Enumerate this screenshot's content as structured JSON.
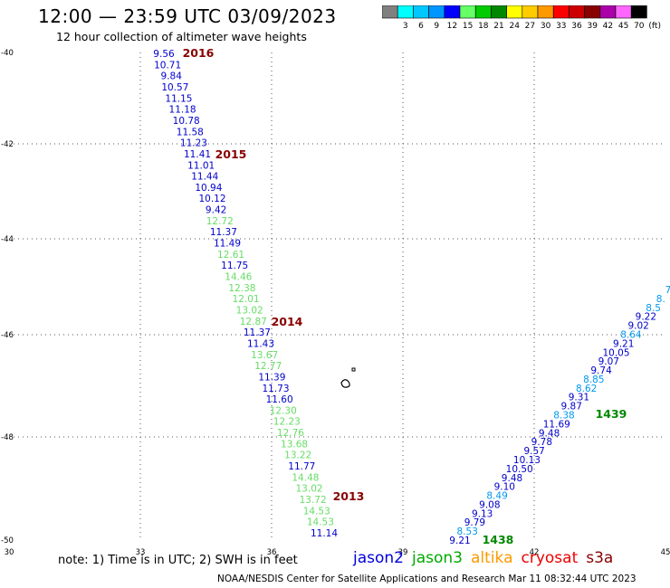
{
  "header": {
    "title": "12:00 — 23:59 UTC 03/09/2023",
    "subtitle": "12 hour collection of altimeter wave heights"
  },
  "color_scale": {
    "unit": "(ft)",
    "levels": [
      {
        "label": "",
        "color": "#808080"
      },
      {
        "label": "3",
        "color": "#00ffff"
      },
      {
        "label": "6",
        "color": "#00c8ff"
      },
      {
        "label": "9",
        "color": "#0096ff"
      },
      {
        "label": "12",
        "color": "#0000ff"
      },
      {
        "label": "15",
        "color": "#66ff66"
      },
      {
        "label": "18",
        "color": "#00cc00"
      },
      {
        "label": "21",
        "color": "#008800"
      },
      {
        "label": "24",
        "color": "#ffff00"
      },
      {
        "label": "27",
        "color": "#ffcc00"
      },
      {
        "label": "30",
        "color": "#ff9900"
      },
      {
        "label": "33",
        "color": "#ff0000"
      },
      {
        "label": "36",
        "color": "#cc0000"
      },
      {
        "label": "39",
        "color": "#880000"
      },
      {
        "label": "42",
        "color": "#aa00aa"
      },
      {
        "label": "45",
        "color": "#ff66ff"
      },
      {
        "label": "70",
        "color": "#000000"
      }
    ]
  },
  "axes": {
    "lon_labels": [
      "30",
      "33",
      "36",
      "39",
      "42",
      "45"
    ],
    "lat_labels": [
      "-40",
      "-42",
      "-44",
      "-46",
      "-48",
      "-50"
    ]
  },
  "tracks": [
    {
      "id": "west",
      "points": [
        {
          "v": "9.56",
          "c": "#0000cc"
        },
        {
          "v": "10.71",
          "c": "#0000cc"
        },
        {
          "v": "9.84",
          "c": "#0000cc"
        },
        {
          "v": "10.57",
          "c": "#0000cc"
        },
        {
          "v": "11.15",
          "c": "#0000cc"
        },
        {
          "v": "11.18",
          "c": "#0000cc"
        },
        {
          "v": "10.78",
          "c": "#0000cc"
        },
        {
          "v": "11.58",
          "c": "#0000cc"
        },
        {
          "v": "11.23",
          "c": "#0000cc"
        },
        {
          "v": "11.41",
          "c": "#0000cc"
        },
        {
          "v": "11.01",
          "c": "#0000cc"
        },
        {
          "v": "11.44",
          "c": "#0000cc"
        },
        {
          "v": "10.94",
          "c": "#0000cc"
        },
        {
          "v": "10.12",
          "c": "#0000cc"
        },
        {
          "v": "9.42",
          "c": "#0000cc"
        },
        {
          "v": "12.72",
          "c": "#66dd66"
        },
        {
          "v": "11.37",
          "c": "#0000cc"
        },
        {
          "v": "11.49",
          "c": "#0000cc"
        },
        {
          "v": "12.61",
          "c": "#66dd66"
        },
        {
          "v": "11.75",
          "c": "#0000cc"
        },
        {
          "v": "14.46",
          "c": "#66dd66"
        },
        {
          "v": "12.38",
          "c": "#66dd66"
        },
        {
          "v": "12.01",
          "c": "#66dd66"
        },
        {
          "v": "13.02",
          "c": "#66dd66"
        },
        {
          "v": "12.87",
          "c": "#66dd66"
        },
        {
          "v": "11.37",
          "c": "#0000cc"
        },
        {
          "v": "11.43",
          "c": "#0000cc"
        },
        {
          "v": "13.67",
          "c": "#66dd66"
        },
        {
          "v": "12.77",
          "c": "#66dd66"
        },
        {
          "v": "11.39",
          "c": "#0000cc"
        },
        {
          "v": "11.73",
          "c": "#0000cc"
        },
        {
          "v": "11.60",
          "c": "#0000cc"
        },
        {
          "v": "12.30",
          "c": "#66dd66"
        },
        {
          "v": "12.23",
          "c": "#66dd66"
        },
        {
          "v": "12.76",
          "c": "#66dd66"
        },
        {
          "v": "13.68",
          "c": "#66dd66"
        },
        {
          "v": "13.22",
          "c": "#66dd66"
        },
        {
          "v": "11.77",
          "c": "#0000cc"
        },
        {
          "v": "14.48",
          "c": "#66dd66"
        },
        {
          "v": "13.02",
          "c": "#66dd66"
        },
        {
          "v": "13.72",
          "c": "#66dd66"
        },
        {
          "v": "14.53",
          "c": "#66dd66"
        },
        {
          "v": "14.53",
          "c": "#66dd66"
        },
        {
          "v": "11.14",
          "c": "#0000cc"
        }
      ],
      "pass_labels": [
        {
          "text": "2016",
          "color": "#880000"
        },
        {
          "text": "2015",
          "color": "#880000"
        },
        {
          "text": "2014",
          "color": "#880000"
        },
        {
          "text": "2013",
          "color": "#880000"
        }
      ]
    },
    {
      "id": "east",
      "points": [
        {
          "v": "9.21",
          "c": "#0000cc"
        },
        {
          "v": "8.53",
          "c": "#0099ee"
        },
        {
          "v": "9.79",
          "c": "#0000cc"
        },
        {
          "v": "9.13",
          "c": "#0000cc"
        },
        {
          "v": "9.08",
          "c": "#0000cc"
        },
        {
          "v": "8.49",
          "c": "#0099ee"
        },
        {
          "v": "9.10",
          "c": "#0000cc"
        },
        {
          "v": "9.48",
          "c": "#0000cc"
        },
        {
          "v": "10.50",
          "c": "#0000cc"
        },
        {
          "v": "10.13",
          "c": "#0000cc"
        },
        {
          "v": "9.57",
          "c": "#0000cc"
        },
        {
          "v": "9.78",
          "c": "#0000cc"
        },
        {
          "v": "9.48",
          "c": "#0000cc"
        },
        {
          "v": "11.69",
          "c": "#0000cc"
        },
        {
          "v": "8.38",
          "c": "#0099ee"
        },
        {
          "v": "9.87",
          "c": "#0000cc"
        },
        {
          "v": "9.31",
          "c": "#0000cc"
        },
        {
          "v": "8.62",
          "c": "#0099ee"
        },
        {
          "v": "8.85",
          "c": "#0099ee"
        },
        {
          "v": "9.74",
          "c": "#0000cc"
        },
        {
          "v": "9.07",
          "c": "#0000cc"
        },
        {
          "v": "10.05",
          "c": "#0000cc"
        },
        {
          "v": "9.21",
          "c": "#0000cc"
        },
        {
          "v": "8.64",
          "c": "#0099ee"
        },
        {
          "v": "9.02",
          "c": "#0000cc"
        },
        {
          "v": "9.22",
          "c": "#0000cc"
        },
        {
          "v": "8.5",
          "c": "#0099ee"
        },
        {
          "v": "8.",
          "c": "#0099ee"
        },
        {
          "v": "7",
          "c": "#0099ee"
        }
      ],
      "pass_labels": [
        {
          "text": "1438",
          "color": "#008800"
        },
        {
          "text": "1439",
          "color": "#008800"
        }
      ]
    }
  ],
  "note": "note: 1) Time is in UTC; 2) SWH is in feet",
  "legend": [
    {
      "label": "jason2",
      "color": "#0000dd"
    },
    {
      "label": "jason3",
      "color": "#00aa00"
    },
    {
      "label": "altika",
      "color": "#ff9900"
    },
    {
      "label": "cryosat",
      "color": "#ee0000"
    },
    {
      "label": "s3a",
      "color": "#880000"
    }
  ],
  "footer": "NOAA/NESDIS Center for Satellite Applications and Research    Mar 11 08:32:44 UTC 2023"
}
